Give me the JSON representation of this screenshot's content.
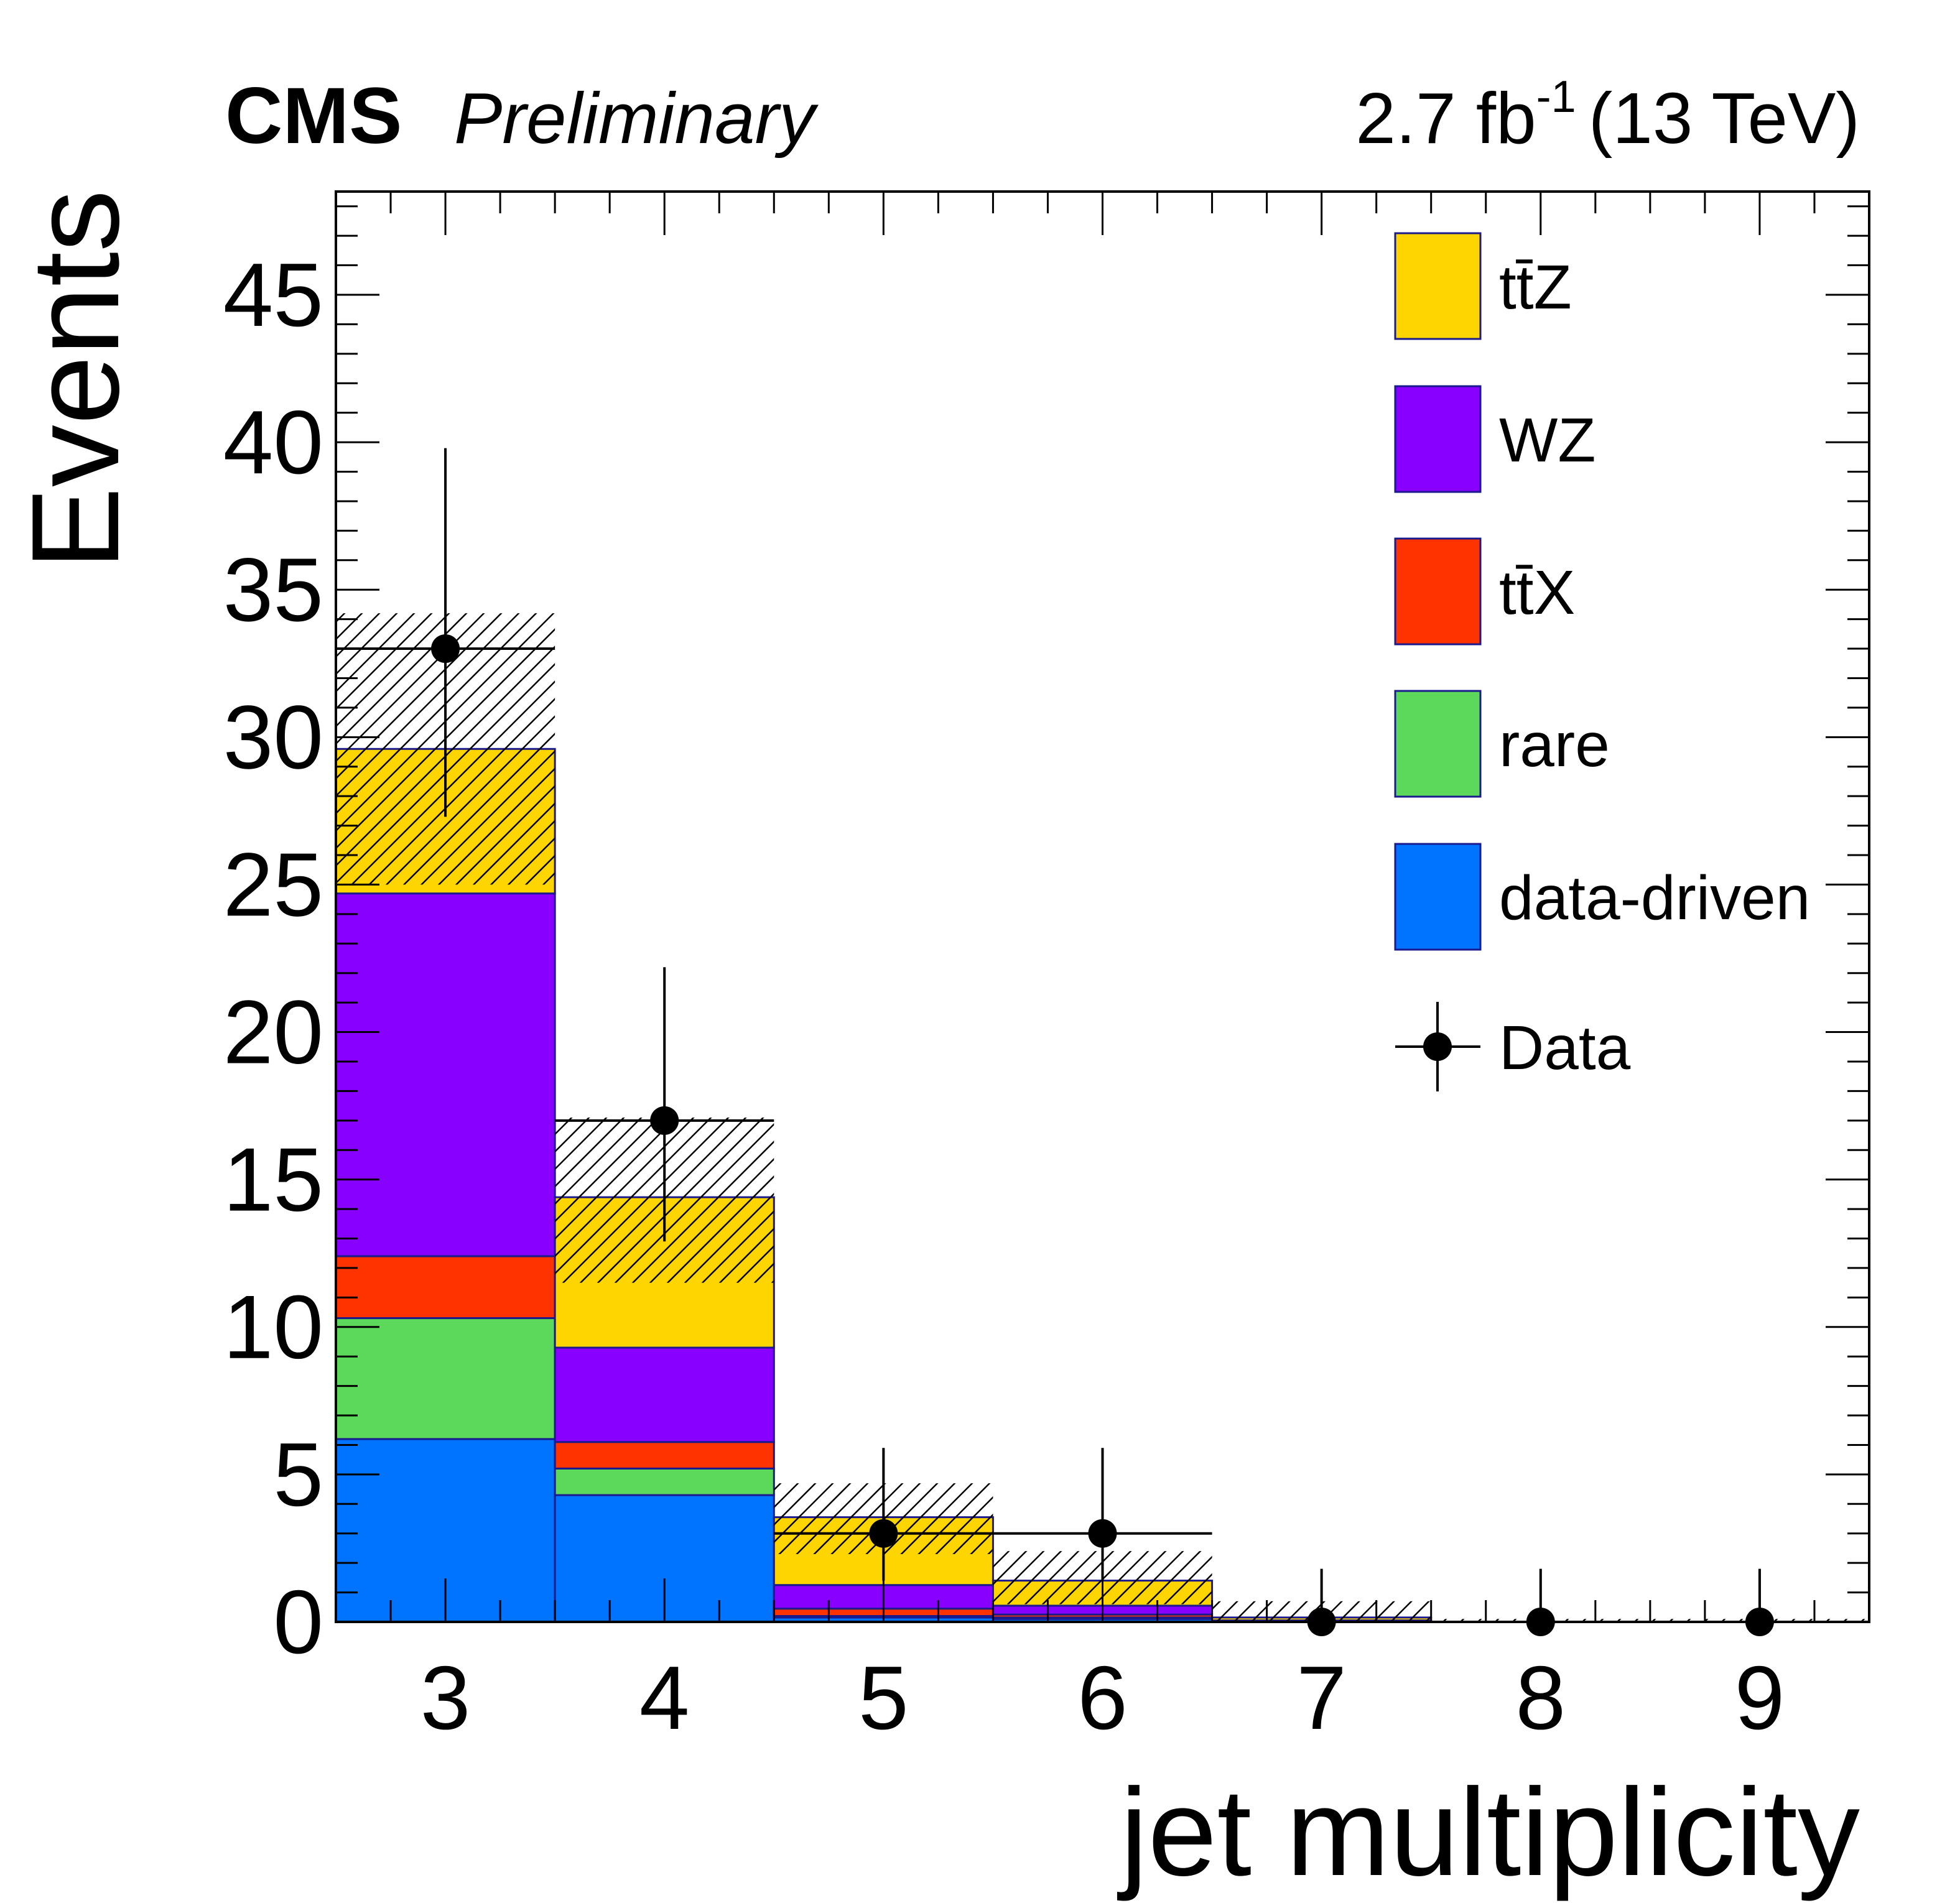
{
  "header": {
    "experiment": "CMS",
    "status": "Preliminary",
    "lumi_value": "2.7 fb",
    "lumi_exponent": "-1",
    "energy": "(13 TeV)"
  },
  "chart_data": {
    "type": "bar",
    "stacked": true,
    "xlabel": "jet multiplicity",
    "ylabel": "Events",
    "categories": [
      3,
      4,
      5,
      6,
      7,
      8,
      9
    ],
    "xlim": [
      2.5,
      9.5
    ],
    "ylim": [
      0,
      48.5
    ],
    "yticks": [
      0,
      5,
      10,
      15,
      20,
      25,
      30,
      35,
      40,
      45
    ],
    "series": [
      {
        "name": "data-driven",
        "color": "#0073ff",
        "values": [
          6.2,
          4.3,
          0.15,
          0.1,
          0.0,
          0.0,
          0.0
        ]
      },
      {
        "name": "rare",
        "color": "#5cd85a",
        "values": [
          4.1,
          0.9,
          0.05,
          0.05,
          0.0,
          0.0,
          0.0
        ]
      },
      {
        "name": "tt̄X",
        "color": "#ff3300",
        "values": [
          2.1,
          0.9,
          0.25,
          0.1,
          0.0,
          0.0,
          0.0
        ]
      },
      {
        "name": "WZ",
        "color": "#8800ff",
        "values": [
          12.3,
          3.2,
          0.8,
          0.3,
          0.05,
          0.0,
          0.0
        ]
      },
      {
        "name": "tt̄Z",
        "color": "#ffd500",
        "values": [
          4.9,
          5.1,
          2.3,
          0.85,
          0.1,
          0.0,
          0.0
        ]
      }
    ],
    "total_uncertainty": [
      {
        "x": 3,
        "low": 25.0,
        "high": 34.2
      },
      {
        "x": 4,
        "low": 11.5,
        "high": 17.1
      },
      {
        "x": 5,
        "low": 2.3,
        "high": 4.7
      },
      {
        "x": 6,
        "low": 0.6,
        "high": 2.4
      },
      {
        "x": 7,
        "low": 0.0,
        "high": 0.7
      },
      {
        "x": 8,
        "low": 0.0,
        "high": 0.1
      },
      {
        "x": 9,
        "low": 0.0,
        "high": 0.1
      }
    ],
    "data_points": {
      "name": "Data",
      "x": [
        3,
        4,
        5,
        6,
        7,
        8,
        9
      ],
      "y": [
        33,
        17,
        3,
        3,
        0,
        0,
        0
      ],
      "err_low": [
        5.7,
        4.1,
        1.6,
        1.6,
        0,
        0,
        0
      ],
      "err_high": [
        6.8,
        5.2,
        2.9,
        2.9,
        1.8,
        1.8,
        1.8
      ]
    },
    "legend": {
      "position": "top-right",
      "entries": [
        "tt̄Z",
        "WZ",
        "tt̄X",
        "rare",
        "data-driven",
        "Data"
      ]
    }
  }
}
